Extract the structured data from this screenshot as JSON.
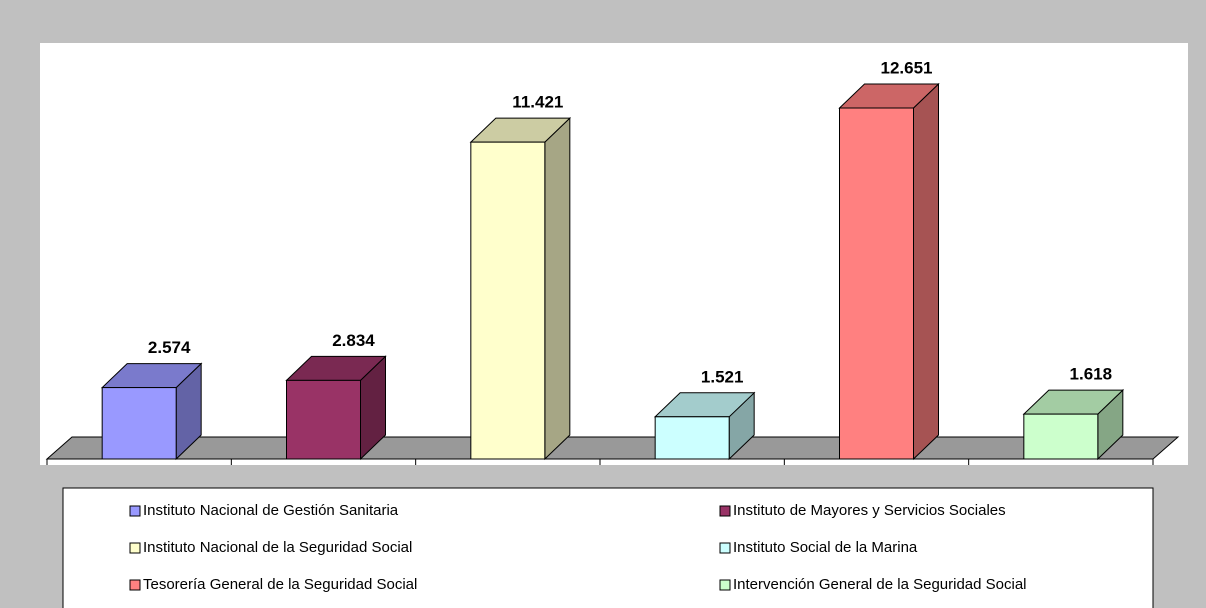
{
  "chart_data": {
    "type": "bar3d",
    "categories": [
      "Instituto Nacional de Gestión Sanitaria",
      "Instituto de Mayores y Servicios Sociales",
      "Instituto Nacional de la Seguridad Social",
      "Instituto Social de la Marina",
      "Tesorería General de la Seguridad Social",
      "Intervención General de la Seguridad Social"
    ],
    "values": [
      2574,
      2834,
      11421,
      1521,
      12651,
      1618
    ],
    "value_labels": [
      "2.574",
      "2.834",
      "11.421",
      "1.521",
      "12.651",
      "1.618"
    ],
    "colors": [
      "#9999ff",
      "#993366",
      "#ffffcc",
      "#ccffff",
      "#ff8080",
      "#ccffcc"
    ],
    "legend": "bottom"
  }
}
